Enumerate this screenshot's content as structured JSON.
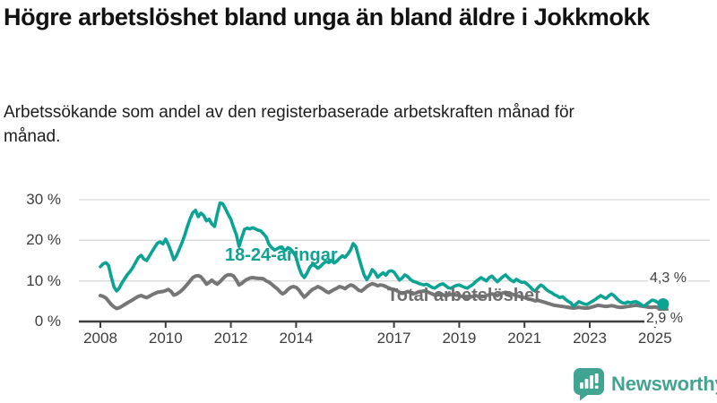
{
  "header": {
    "title": "Högre arbetslöshet bland unga än bland äldre i Jokkmokk",
    "subtitle": "Arbetssökande som andel av den registerbaserade arbetskraften månad för månad."
  },
  "chart_data": {
    "type": "line",
    "title": "Högre arbetslöshet bland unga än bland äldre i Jokkmokk",
    "subtitle": "Arbetssökande som andel av den registerbaserade arbetskraften månad för månad.",
    "unit": "%",
    "x_start": "2008-01",
    "x_end": "2025-04",
    "x_frequency": "monthly",
    "x_tick_years": [
      2008,
      2010,
      2012,
      2014,
      2017,
      2019,
      2021,
      2023,
      2025
    ],
    "x_tick_labels": [
      "2008",
      "2010",
      "2012",
      "2014",
      "2017",
      "2019",
      "2021",
      "2023",
      "2025"
    ],
    "y_tick_values": [
      0,
      10,
      20,
      30
    ],
    "y_tick_labels": [
      "0 %",
      "10 %",
      "20 %",
      "30 %"
    ],
    "ylim": [
      0,
      32
    ],
    "grid": "horizontal",
    "axis_color": "#3d3d3d",
    "grid_color": "#d9d9d9",
    "series": [
      {
        "name": "18-24-åringar",
        "color": "#0aa394",
        "end_label": "4,3 %",
        "end_value": 4.3,
        "values": [
          13.5,
          14.2,
          14.5,
          13.8,
          11.0,
          8.5,
          7.5,
          8.3,
          9.6,
          10.6,
          11.6,
          12.4,
          13.4,
          14.6,
          15.8,
          16.3,
          15.4,
          15.0,
          16.1,
          17.2,
          18.3,
          19.3,
          19.6,
          19.1,
          20.3,
          19.0,
          17.2,
          15.2,
          16.2,
          17.8,
          19.4,
          21.2,
          23.4,
          25.3,
          26.8,
          27.4,
          25.8,
          26.7,
          26.1,
          24.8,
          25.2,
          24.0,
          23.4,
          26.5,
          29.2,
          29.0,
          27.8,
          26.4,
          25.2,
          23.2,
          21.4,
          18.5,
          20.6,
          22.7,
          23.0,
          22.8,
          23.1,
          22.8,
          22.5,
          22.3,
          21.6,
          20.8,
          19.0,
          18.2,
          17.6,
          17.9,
          18.3,
          18.0,
          17.5,
          18.2,
          17.8,
          17.0,
          15.8,
          13.4,
          11.6,
          10.8,
          11.9,
          13.3,
          14.1,
          13.7,
          13.1,
          13.6,
          14.3,
          14.8,
          14.5,
          15.0,
          14.4,
          14.9,
          15.6,
          16.2,
          15.8,
          16.6,
          17.6,
          19.2,
          18.4,
          15.9,
          13.6,
          11.5,
          10.3,
          11.3,
          12.8,
          12.1,
          10.9,
          11.5,
          12.0,
          11.4,
          12.3,
          12.5,
          12.2,
          11.2,
          10.2,
          10.7,
          11.5,
          11.1,
          10.4,
          9.9,
          9.7,
          9.4,
          9.2,
          9.0,
          9.2,
          8.8,
          8.4,
          8.2,
          8.7,
          9.1,
          9.3,
          8.8,
          8.3,
          8.2,
          8.6,
          8.9,
          9.0,
          8.7,
          8.4,
          8.2,
          8.7,
          9.1,
          9.8,
          10.3,
          10.8,
          10.4,
          10.0,
          10.8,
          11.2,
          10.5,
          9.8,
          10.4,
          11.0,
          11.5,
          10.8,
          10.2,
          9.8,
          10.4,
          10.0,
          9.6,
          9.7,
          9.2,
          8.6,
          7.8,
          7.5,
          8.4,
          9.0,
          8.6,
          7.9,
          7.4,
          7.1,
          6.6,
          6.3,
          5.9,
          6.1,
          5.5,
          5.0,
          4.6,
          3.8,
          4.3,
          4.9,
          4.6,
          4.3,
          4.2,
          4.6,
          5.0,
          5.4,
          5.9,
          6.4,
          6.0,
          5.7,
          6.3,
          6.8,
          6.3,
          5.6,
          5.0,
          4.6,
          4.5,
          4.8,
          4.6,
          4.8,
          4.9,
          4.6,
          4.1,
          3.8,
          4.3,
          4.8,
          5.3,
          5.1,
          4.7,
          4.4,
          4.3
        ]
      },
      {
        "name": "Total arbetslöshet",
        "color": "#767676",
        "end_label": "2,9 %",
        "end_value": 2.9,
        "values": [
          6.4,
          6.2,
          5.8,
          5.0,
          4.2,
          3.6,
          3.2,
          3.4,
          3.8,
          4.2,
          4.6,
          5.0,
          5.4,
          5.8,
          6.2,
          6.4,
          6.1,
          5.9,
          6.2,
          6.6,
          6.9,
          7.2,
          7.3,
          7.4,
          7.6,
          7.9,
          7.4,
          6.5,
          6.7,
          7.2,
          7.7,
          8.4,
          9.2,
          10.0,
          10.8,
          11.2,
          11.3,
          11.0,
          10.2,
          9.2,
          9.6,
          10.2,
          9.6,
          9.2,
          9.8,
          10.5,
          11.2,
          11.5,
          11.5,
          11.2,
          10.2,
          9.0,
          9.4,
          10.0,
          10.4,
          10.7,
          10.8,
          10.7,
          10.6,
          10.6,
          10.5,
          10.0,
          9.7,
          9.2,
          8.6,
          8.1,
          7.4,
          6.8,
          7.2,
          7.9,
          8.4,
          8.6,
          8.4,
          7.8,
          6.8,
          6.0,
          6.6,
          7.3,
          7.9,
          8.2,
          8.6,
          8.3,
          7.9,
          7.4,
          7.1,
          7.5,
          7.9,
          8.2,
          8.6,
          8.4,
          8.1,
          8.6,
          9.0,
          8.8,
          8.3,
          7.7,
          7.5,
          8.0,
          8.6,
          9.0,
          9.3,
          9.1,
          8.8,
          9.0,
          8.9,
          8.6,
          8.3,
          8.0,
          7.9,
          7.6,
          7.2,
          6.9,
          7.1,
          7.4,
          7.1,
          6.8,
          7.0,
          7.3,
          7.4,
          7.5,
          7.4,
          7.1,
          6.8,
          6.5,
          6.7,
          6.9,
          6.6,
          6.3,
          6.5,
          6.7,
          6.6,
          6.5,
          6.4,
          6.2,
          6.0,
          5.8,
          6.0,
          6.2,
          6.4,
          6.2,
          6.0,
          6.2,
          6.4,
          6.6,
          6.8,
          6.6,
          6.4,
          6.8,
          7.0,
          7.2,
          7.0,
          6.8,
          6.6,
          6.4,
          6.2,
          6.0,
          5.9,
          5.7,
          5.5,
          5.3,
          5.1,
          5.2,
          5.0,
          4.8,
          4.6,
          4.4,
          4.2,
          4.0,
          3.9,
          3.8,
          3.7,
          3.6,
          3.5,
          3.4,
          3.3,
          3.4,
          3.5,
          3.4,
          3.3,
          3.3,
          3.4,
          3.6,
          3.8,
          4.0,
          3.9,
          3.8,
          3.7,
          3.8,
          3.9,
          3.8,
          3.6,
          3.5,
          3.5,
          3.6,
          3.7,
          3.8,
          3.9,
          4.0,
          3.9,
          3.8,
          3.7,
          3.6,
          3.5,
          3.5,
          3.6,
          3.4,
          3.1,
          2.9
        ]
      }
    ]
  },
  "branding": {
    "logo_text": "Newsworthy",
    "logo_color": "#41a492",
    "logo_icon": "bar-chart-speech-bubble-icon"
  }
}
